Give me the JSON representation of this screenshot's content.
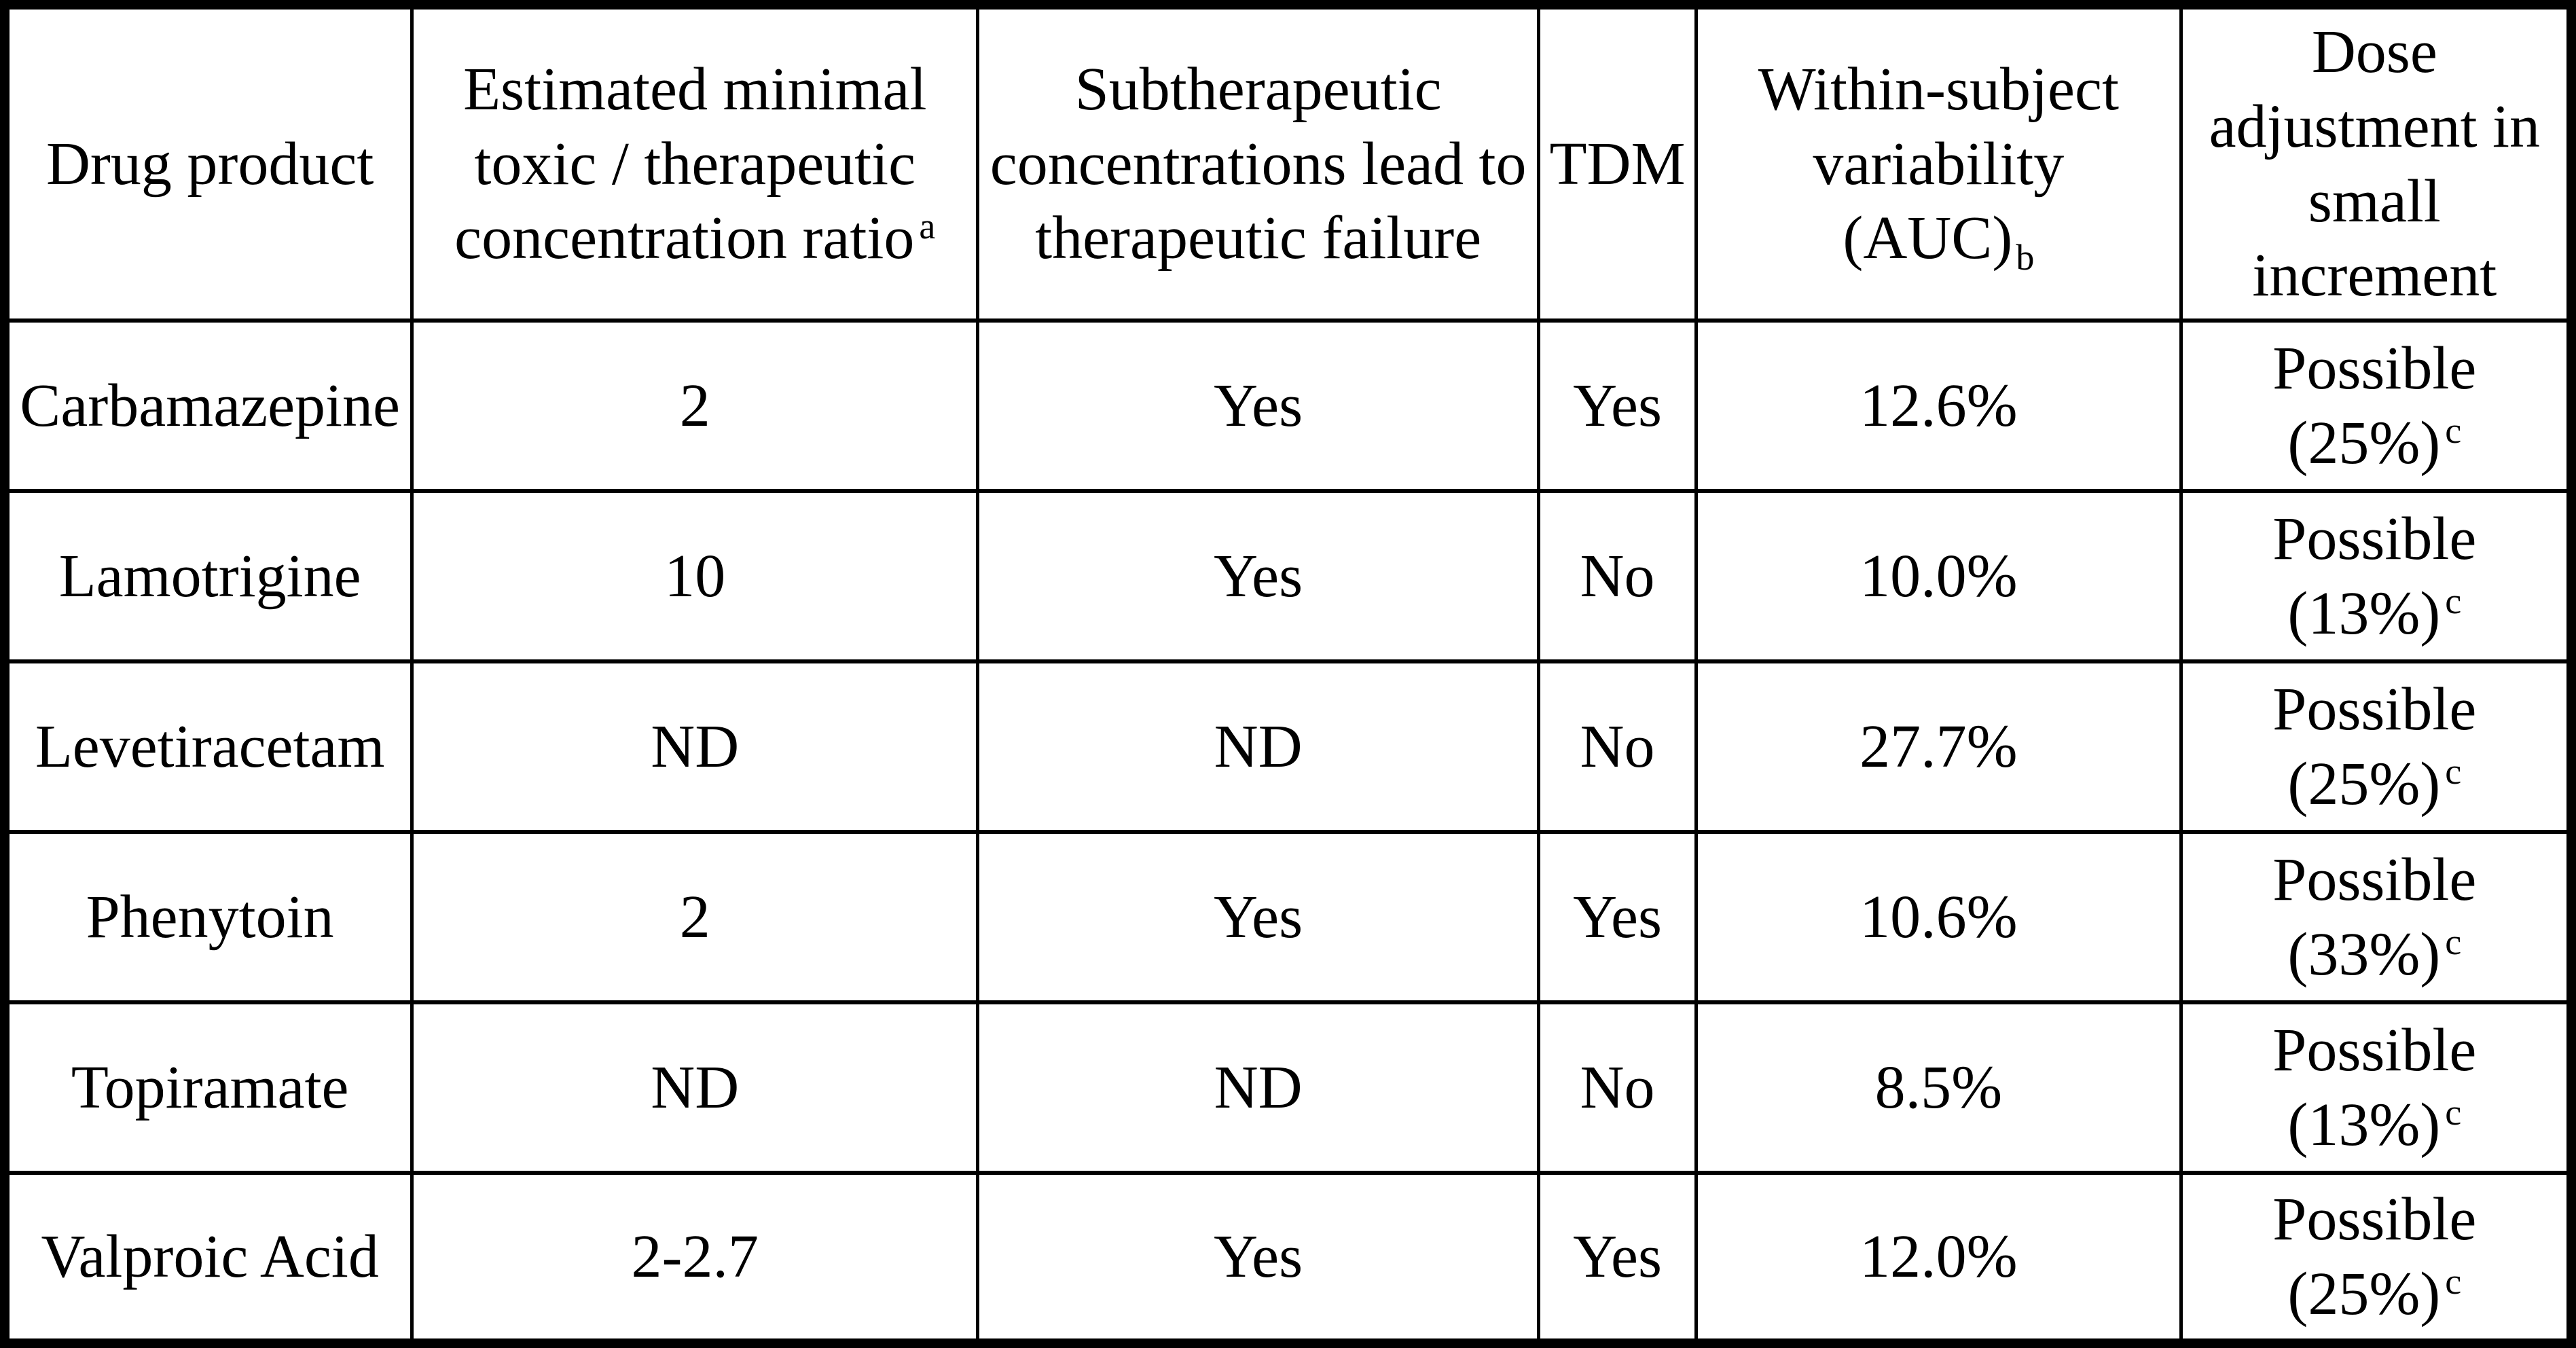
{
  "table": {
    "columns": [
      {
        "id": "drug",
        "lines": [
          "Drug product"
        ]
      },
      {
        "id": "ratio",
        "lines": [
          "Estimated minimal",
          "toxic / therapeutic",
          "concentration ratio"
        ],
        "marker": "a",
        "marker_type": "sup"
      },
      {
        "id": "subtherapeutic",
        "lines": [
          "Subtherapeutic",
          "concentrations lead to",
          "therapeutic failure"
        ]
      },
      {
        "id": "tdm",
        "lines": [
          "TDM"
        ]
      },
      {
        "id": "variability",
        "lines": [
          "Within-subject",
          "variability",
          "(AUC)"
        ],
        "marker": "b",
        "marker_type": "sub"
      },
      {
        "id": "dose",
        "lines": [
          "Dose",
          "adjustment in",
          "small",
          "increment"
        ]
      }
    ],
    "rows": [
      {
        "drug": "Carbamazepine",
        "ratio": "2",
        "subtherapeutic": "Yes",
        "tdm": "Yes",
        "variability": "12.6%",
        "dose": [
          "Possible",
          "(25%)"
        ],
        "dose_marker": "c"
      },
      {
        "drug": "Lamotrigine",
        "ratio": "10",
        "subtherapeutic": "Yes",
        "tdm": "No",
        "variability": "10.0%",
        "dose": [
          "Possible",
          "(13%)"
        ],
        "dose_marker": "c"
      },
      {
        "drug": "Levetiracetam",
        "ratio": "ND",
        "subtherapeutic": "ND",
        "tdm": "No",
        "variability": "27.7%",
        "dose": [
          "Possible",
          "(25%)"
        ],
        "dose_marker": "c"
      },
      {
        "drug": "Phenytoin",
        "ratio": "2",
        "subtherapeutic": "Yes",
        "tdm": "Yes",
        "variability": "10.6%",
        "dose": [
          "Possible",
          "(33%)"
        ],
        "dose_marker": "c"
      },
      {
        "drug": "Topiramate",
        "ratio": "ND",
        "subtherapeutic": "ND",
        "tdm": "No",
        "variability": "8.5%",
        "dose": [
          "Possible",
          "(13%)"
        ],
        "dose_marker": "c"
      },
      {
        "drug": "Valproic Acid",
        "ratio": "2-2.7",
        "subtherapeutic": "Yes",
        "tdm": "Yes",
        "variability": "12.0%",
        "dose": [
          "Possible",
          "(25%)"
        ],
        "dose_marker": "c"
      }
    ]
  }
}
